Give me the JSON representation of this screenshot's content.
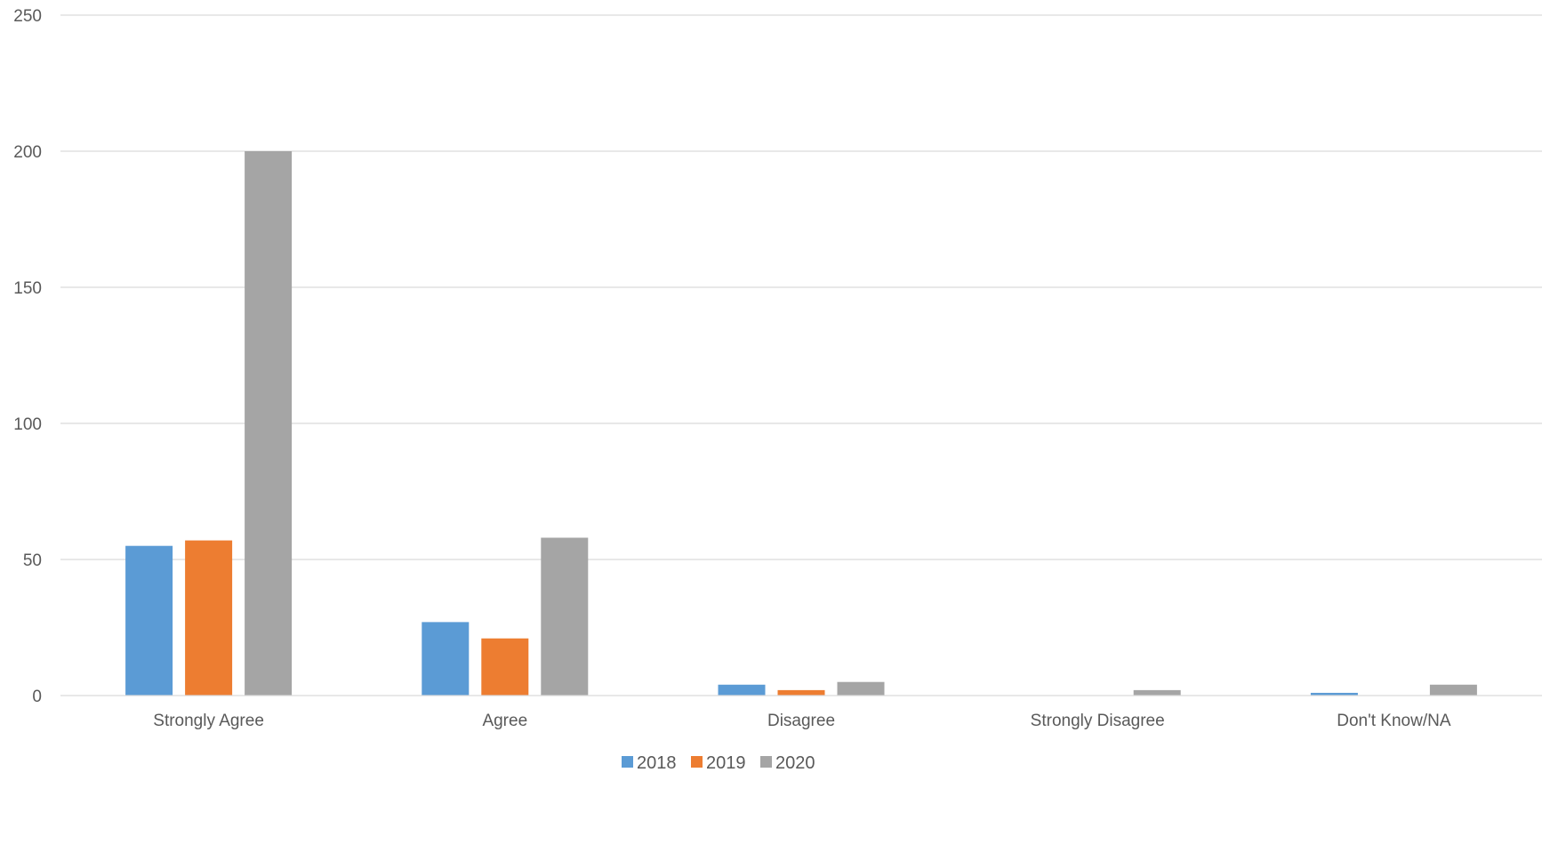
{
  "chart_data": {
    "type": "bar",
    "title": "",
    "xlabel": "",
    "ylabel": "",
    "categories": [
      "Strongly Agree",
      "Agree",
      "Disagree",
      "Strongly Disagree",
      "Don't Know/NA"
    ],
    "series": [
      {
        "name": "2018",
        "color": "#5B9BD5",
        "values": [
          55,
          27,
          4,
          0,
          1
        ]
      },
      {
        "name": "2019",
        "color": "#ED7D31",
        "values": [
          57,
          21,
          2,
          0,
          0
        ]
      },
      {
        "name": "2020",
        "color": "#A5A5A5",
        "values": [
          200,
          58,
          5,
          2,
          4
        ]
      }
    ],
    "ylim": [
      0,
      250
    ],
    "yticks": [
      0,
      50,
      100,
      150,
      200,
      250
    ],
    "grid": true,
    "legend_position": "bottom"
  }
}
